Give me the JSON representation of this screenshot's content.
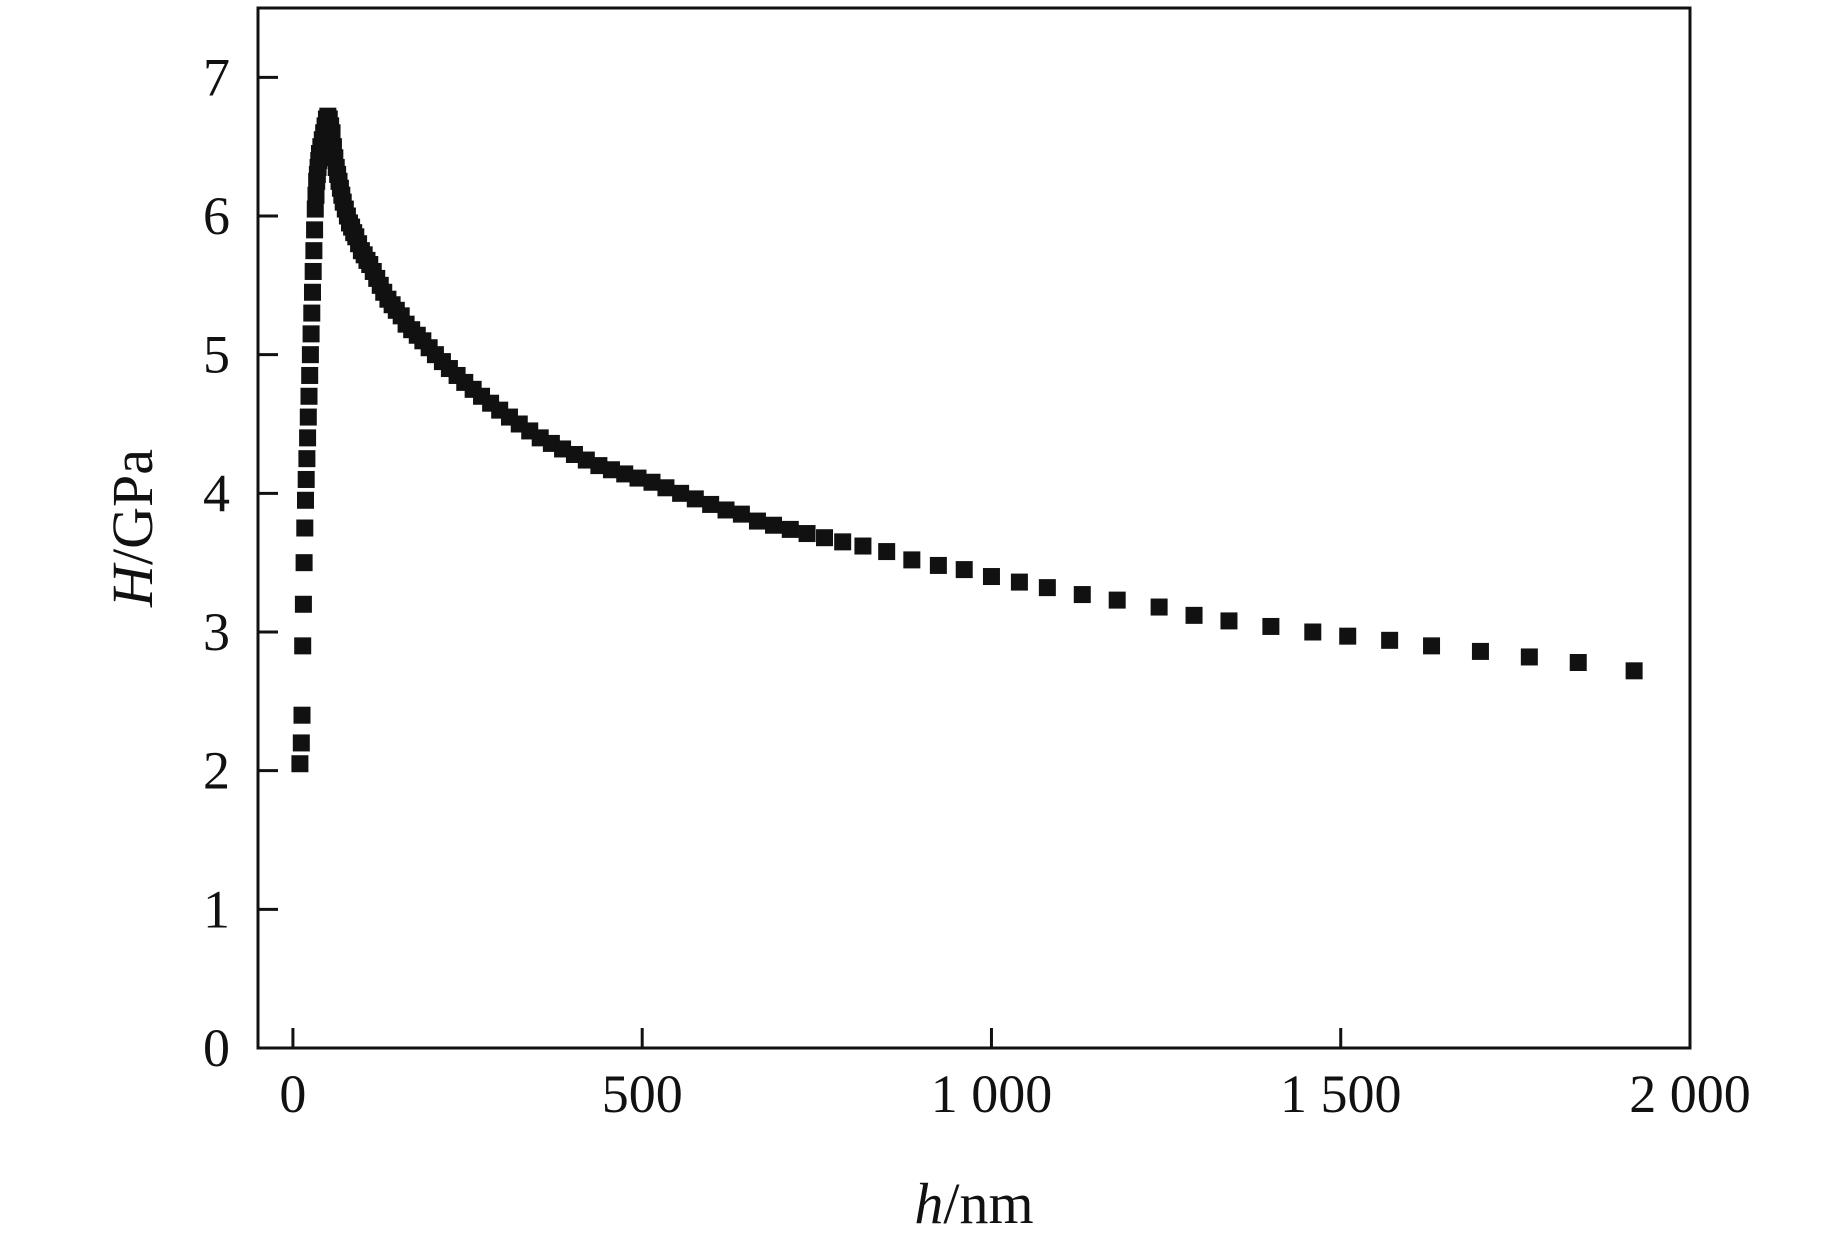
{
  "chart_data": {
    "type": "scatter",
    "xlabel_var": "h",
    "xlabel_unit": "/nm",
    "ylabel_var": "H",
    "ylabel_unit": "/GPa",
    "xlim": [
      -50,
      2000
    ],
    "ylim": [
      0,
      7.5
    ],
    "x_ticks": [
      0,
      500,
      1000,
      1500,
      2000
    ],
    "x_tick_labels": [
      "0",
      "500",
      "1 000",
      "1 500",
      "2 000"
    ],
    "y_ticks": [
      0,
      1,
      2,
      3,
      4,
      5,
      6,
      7
    ],
    "y_tick_labels": [
      "0",
      "1",
      "2",
      "3",
      "4",
      "5",
      "6",
      "7"
    ],
    "grid": false,
    "marker": "square",
    "color": "#111111",
    "series": [
      {
        "x": [
          10,
          12,
          13,
          14,
          15,
          16,
          17,
          18,
          19,
          20,
          21,
          22,
          23,
          24,
          25,
          26,
          27,
          28,
          29,
          30,
          31,
          32,
          33,
          34,
          35,
          36,
          37,
          38,
          39,
          40,
          42,
          44,
          46,
          48,
          50,
          52,
          54,
          56,
          58,
          60,
          62,
          64,
          66,
          68,
          70,
          72,
          75,
          78,
          81,
          84,
          87,
          90,
          94,
          98,
          102,
          106,
          110,
          115,
          120,
          125,
          130,
          136,
          142,
          148,
          155,
          162,
          170,
          178,
          186,
          195,
          204,
          214,
          224,
          235,
          246,
          258,
          270,
          283,
          296,
          310,
          324,
          339,
          354,
          370,
          386,
          403,
          420,
          438,
          456,
          475,
          494,
          514,
          534,
          555,
          576,
          598,
          620,
          642,
          665,
          688,
          712,
          736,
          761,
          787,
          816,
          850,
          886,
          924,
          961,
          1000,
          1040,
          1080,
          1130,
          1180,
          1240,
          1290,
          1340,
          1400,
          1460,
          1510,
          1570,
          1630,
          1700,
          1770,
          1840,
          1920
        ],
        "y": [
          2.05,
          2.2,
          2.4,
          2.9,
          3.2,
          3.5,
          3.75,
          3.95,
          4.1,
          4.25,
          4.4,
          4.55,
          4.7,
          4.85,
          5.0,
          5.15,
          5.3,
          5.45,
          5.6,
          5.75,
          5.9,
          6.05,
          6.15,
          6.25,
          6.3,
          6.35,
          6.4,
          6.45,
          6.45,
          6.5,
          6.55,
          6.6,
          6.65,
          6.7,
          6.72,
          6.7,
          6.65,
          6.6,
          6.5,
          6.42,
          6.35,
          6.3,
          6.25,
          6.2,
          6.15,
          6.1,
          6.05,
          6.0,
          5.95,
          5.92,
          5.88,
          5.85,
          5.8,
          5.75,
          5.72,
          5.68,
          5.65,
          5.6,
          5.55,
          5.5,
          5.45,
          5.4,
          5.36,
          5.32,
          5.28,
          5.22,
          5.18,
          5.14,
          5.1,
          5.05,
          5.0,
          4.95,
          4.9,
          4.85,
          4.8,
          4.75,
          4.7,
          4.65,
          4.6,
          4.55,
          4.5,
          4.45,
          4.4,
          4.36,
          4.32,
          4.28,
          4.24,
          4.2,
          4.17,
          4.14,
          4.11,
          4.08,
          4.04,
          4.0,
          3.96,
          3.92,
          3.88,
          3.85,
          3.8,
          3.77,
          3.74,
          3.71,
          3.68,
          3.65,
          3.62,
          3.58,
          3.52,
          3.48,
          3.45,
          3.4,
          3.36,
          3.32,
          3.27,
          3.23,
          3.18,
          3.12,
          3.08,
          3.04,
          3.0,
          2.97,
          2.94,
          2.9,
          2.86,
          2.82,
          2.78,
          2.72
        ]
      }
    ]
  }
}
